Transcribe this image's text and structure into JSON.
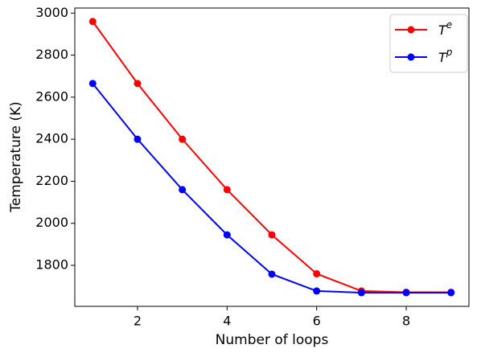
{
  "chart_data": {
    "type": "line",
    "xlabel": "Number of loops",
    "ylabel": "Temperature (K)",
    "x": [
      1,
      2,
      3,
      4,
      5,
      6,
      7,
      8,
      9
    ],
    "series": [
      {
        "name": "Te",
        "color": "#ff0000",
        "values": [
          2960,
          2665,
          2400,
          2160,
          1945,
          1760,
          1678,
          1672,
          1672
        ]
      },
      {
        "name": "Tp",
        "color": "#0000ff",
        "values": [
          2665,
          2400,
          2160,
          1945,
          1758,
          1678,
          1670,
          1670,
          1670
        ]
      }
    ],
    "xlim": [
      0.6,
      9.4
    ],
    "xticks": [
      2,
      4,
      6,
      8
    ],
    "ylim": [
      1605,
      3024
    ],
    "yticks": [
      1800,
      2000,
      2200,
      2400,
      2600,
      2800,
      3000
    ],
    "legend": "upper right"
  }
}
